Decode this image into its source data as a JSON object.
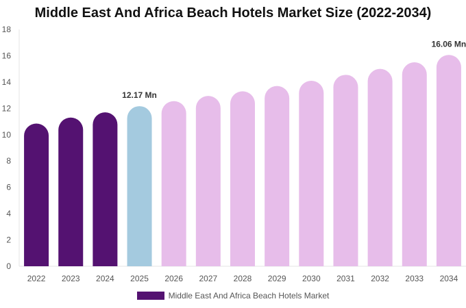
{
  "chart_data": {
    "type": "bar",
    "title": "Middle East And Africa Beach Hotels Market Size (2022-2034)",
    "xlabel": "",
    "ylabel": "",
    "ylim": [
      0,
      18
    ],
    "yticks": [
      0,
      2,
      4,
      6,
      8,
      10,
      12,
      14,
      16,
      18
    ],
    "grid": false,
    "legend_position": "bottom-center",
    "categories": [
      "2022",
      "2023",
      "2024",
      "2025",
      "2026",
      "2027",
      "2028",
      "2029",
      "2030",
      "2031",
      "2032",
      "2033",
      "2034"
    ],
    "series": [
      {
        "name": "Middle East And Africa Beach Hotels Market",
        "values": [
          10.85,
          11.3,
          11.7,
          12.17,
          12.55,
          12.95,
          13.3,
          13.7,
          14.1,
          14.55,
          15.0,
          15.5,
          16.06
        ],
        "color": "#541271"
      }
    ],
    "bar_colors": [
      "#541271",
      "#541271",
      "#541271",
      "#a4cadf",
      "#e7bdea",
      "#e7bdea",
      "#e7bdea",
      "#e7bdea",
      "#e7bdea",
      "#e7bdea",
      "#e7bdea",
      "#e7bdea",
      "#e7bdea"
    ],
    "annotations": [
      {
        "category": "2025",
        "text": "12.17 Mn"
      },
      {
        "category": "2034",
        "text": "16.06 Mn"
      }
    ]
  }
}
